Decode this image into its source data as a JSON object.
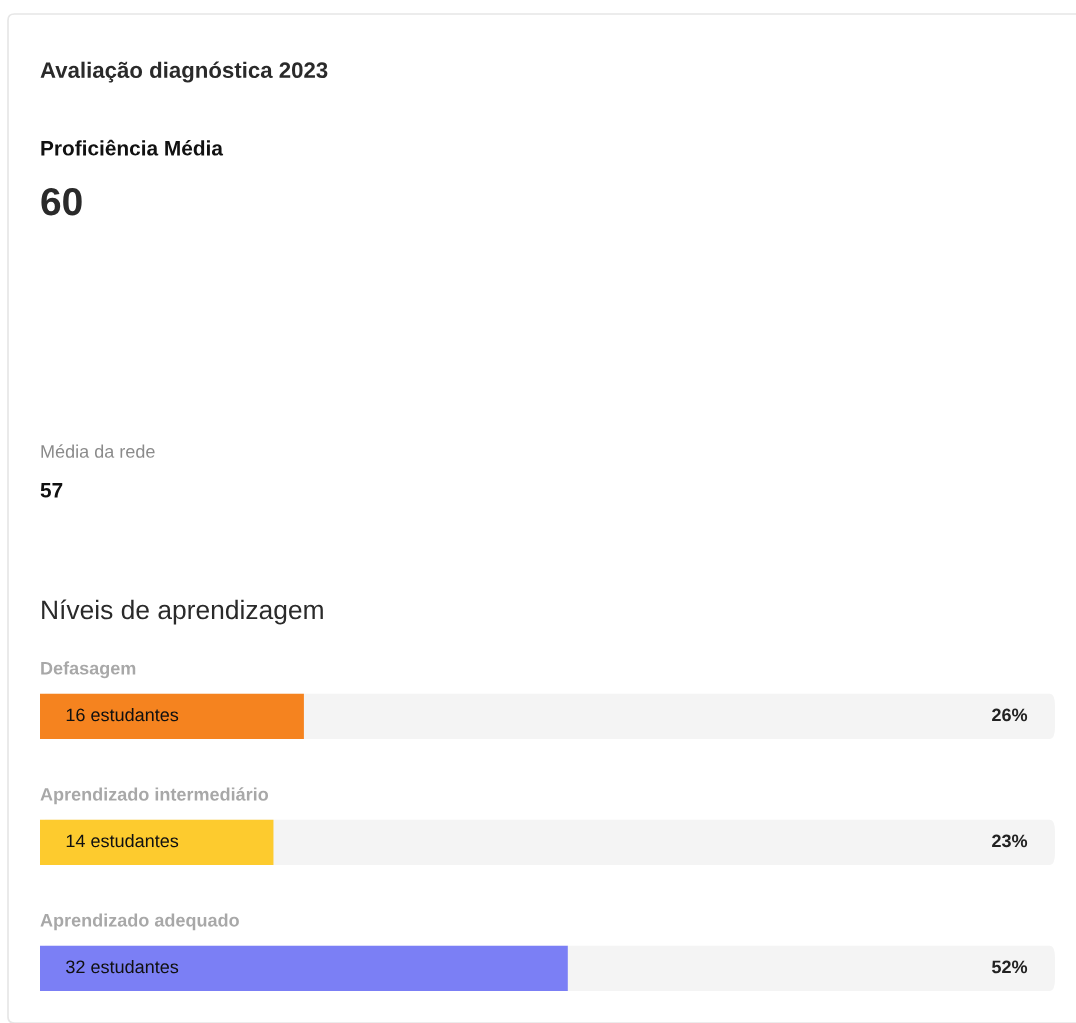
{
  "chart_data": {
    "type": "bar",
    "orientation": "horizontal",
    "title": "Avaliação diagnóstica 2023",
    "subtitle": "Níveis de aprendizagem",
    "categories": [
      "Defasagem",
      "Aprendizado intermediário",
      "Aprendizado adequado"
    ],
    "values": [
      26,
      23,
      52
    ],
    "colors": [
      "#f5831f",
      "#fdcb2e",
      "#7b7ff5"
    ],
    "value_labels": [
      "26%",
      "23%",
      "52%"
    ],
    "xlim": [
      0,
      100
    ],
    "annotations": [
      "Proficiência Média",
      "60",
      "Média da rede",
      "57",
      "16 estudantes",
      "14 estudantes",
      "32 estudantes"
    ]
  }
}
